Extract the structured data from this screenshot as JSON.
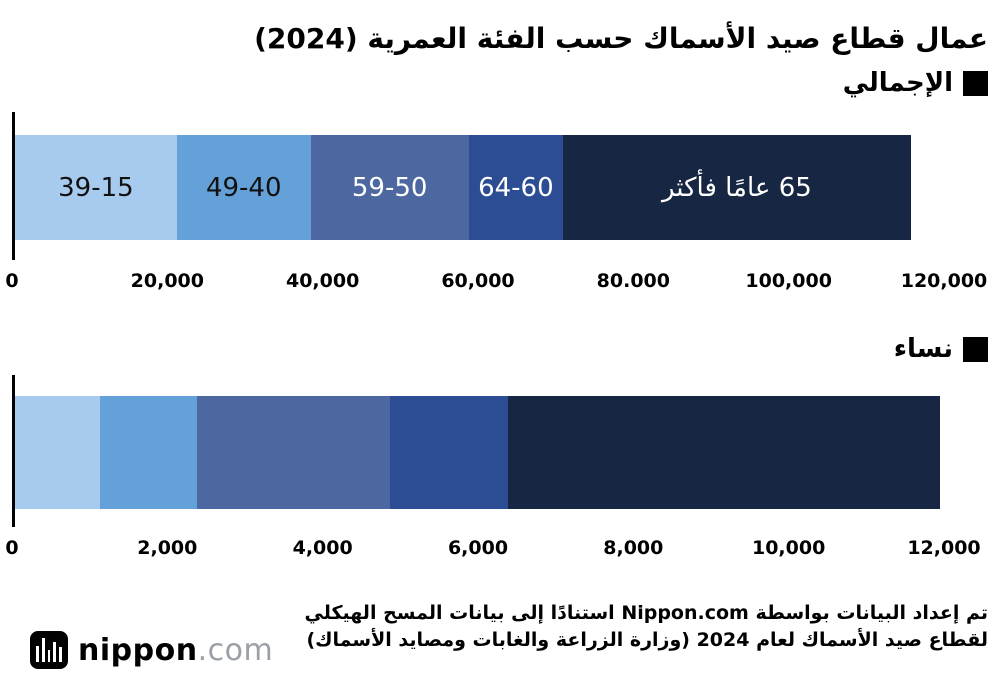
{
  "title": "عمال قطاع صيد الأسماك حسب الفئة العمرية (2024)",
  "legend_marker_icon": "black-square",
  "chart_data": [
    {
      "type": "bar",
      "subtype": "horizontal-stacked",
      "title": "الإجمالي",
      "axis_max": 120000,
      "tick_values": [
        0,
        20000,
        40000,
        60000,
        80000,
        100000,
        120000
      ],
      "tick_labels": [
        "0",
        "20,000",
        "40,000",
        "60,000",
        "80.000",
        "100,000",
        "120,000"
      ],
      "segments": [
        {
          "label": "39-15",
          "age_group": "15-39",
          "value": 20900,
          "color": "#a6cbee",
          "label_color": "#111111"
        },
        {
          "label": "49-40",
          "age_group": "40-49",
          "value": 17300,
          "color": "#64a1d8",
          "label_color": "#111111"
        },
        {
          "label": "59-50",
          "age_group": "50-59",
          "value": 20400,
          "color": "#4d68a1",
          "label_color": "#ffffff"
        },
        {
          "label": "64-60",
          "age_group": "60-64",
          "value": 12200,
          "color": "#2c4c94",
          "label_color": "#ffffff"
        },
        {
          "label": "65 عامًا فأكثر",
          "age_group": "65+",
          "value": 44900,
          "color": "#172642",
          "label_color": "#ffffff"
        }
      ]
    },
    {
      "type": "bar",
      "subtype": "horizontal-stacked",
      "title": "نساء",
      "axis_max": 12000,
      "tick_values": [
        0,
        2000,
        4000,
        6000,
        8000,
        10000,
        12000
      ],
      "tick_labels": [
        "0",
        "2,000",
        "4,000",
        "6,000",
        "8,000",
        "10,000",
        "12,000"
      ],
      "segments": [
        {
          "label": "",
          "age_group": "15-39",
          "value": 1100,
          "color": "#a6cbee",
          "label_color": "#111111"
        },
        {
          "label": "",
          "age_group": "40-49",
          "value": 1250,
          "color": "#64a1d8",
          "label_color": "#111111"
        },
        {
          "label": "",
          "age_group": "50-59",
          "value": 2500,
          "color": "#4d68a1",
          "label_color": "#ffffff"
        },
        {
          "label": "",
          "age_group": "60-64",
          "value": 1520,
          "color": "#2c4c94",
          "label_color": "#ffffff"
        },
        {
          "label": "",
          "age_group": "65+",
          "value": 5580,
          "color": "#172642",
          "label_color": "#ffffff"
        }
      ]
    }
  ],
  "footer": {
    "line1": "تم إعداد البيانات بواسطة Nippon.com استنادًا إلى بيانات المسح الهيكلي",
    "line2": "لقطاع صيد الأسماك لعام 2024 (وزارة الزراعة والغابات ومصايد الأسماك)"
  },
  "logo": {
    "name": "nippon",
    "tld": ".com",
    "icon": "nippon-logomark-bars"
  }
}
